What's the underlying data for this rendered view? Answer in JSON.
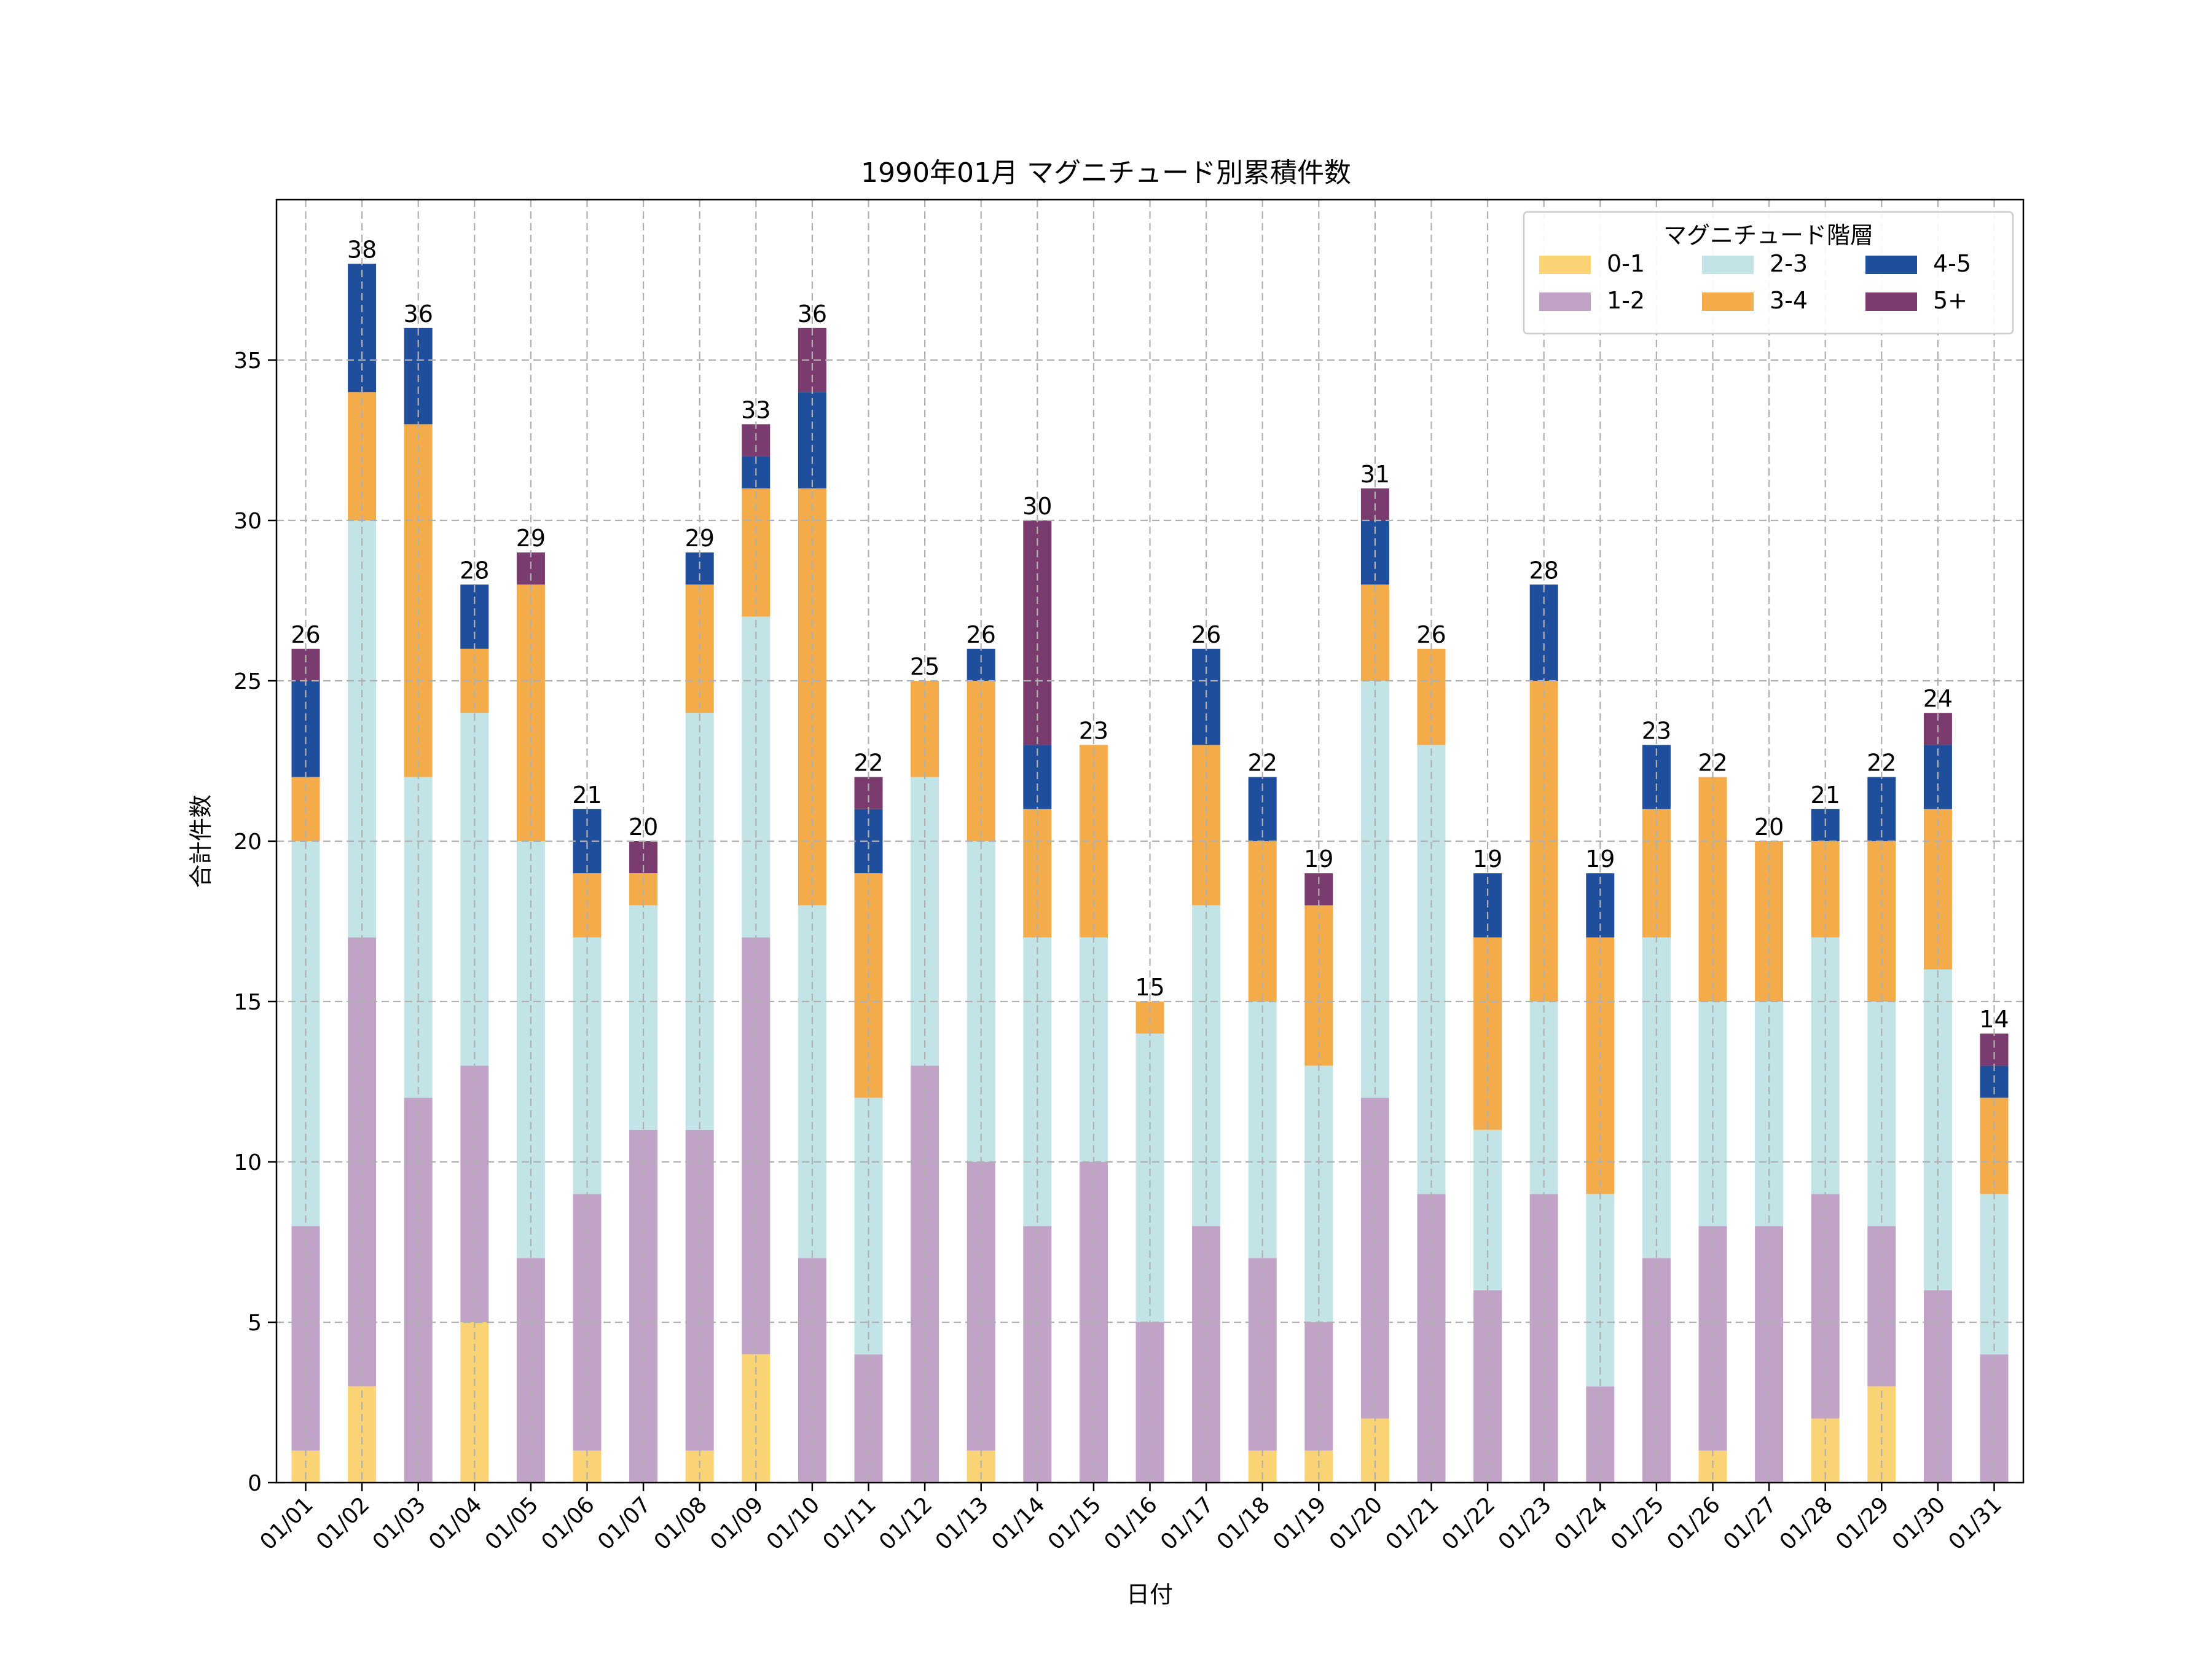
{
  "chart_data": {
    "type": "bar",
    "stacked": true,
    "title": "1990年01月 マグニチュード別累積件数",
    "xlabel": "日付",
    "ylabel": "合計件数",
    "ylim": [
      0,
      40
    ],
    "yticks": [
      0,
      5,
      10,
      15,
      20,
      25,
      30,
      35
    ],
    "grid": true,
    "legend": {
      "title": "マグニチュード階層",
      "position": "top-right",
      "columns": 3
    },
    "categories": [
      "01/01",
      "01/02",
      "01/03",
      "01/04",
      "01/05",
      "01/06",
      "01/07",
      "01/08",
      "01/09",
      "01/10",
      "01/11",
      "01/12",
      "01/13",
      "01/14",
      "01/15",
      "01/16",
      "01/17",
      "01/18",
      "01/19",
      "01/20",
      "01/21",
      "01/22",
      "01/23",
      "01/24",
      "01/25",
      "01/26",
      "01/27",
      "01/28",
      "01/29",
      "01/30",
      "01/31"
    ],
    "series": [
      {
        "name": "0-1",
        "color": "#FAD375",
        "values": [
          1,
          3,
          0,
          5,
          0,
          1,
          0,
          1,
          4,
          0,
          0,
          0,
          1,
          0,
          0,
          0,
          0,
          1,
          1,
          2,
          0,
          0,
          0,
          0,
          0,
          1,
          0,
          2,
          3,
          0,
          0
        ]
      },
      {
        "name": "1-2",
        "color": "#C1A3C8",
        "values": [
          7,
          14,
          12,
          8,
          7,
          8,
          11,
          10,
          13,
          7,
          4,
          13,
          9,
          8,
          10,
          5,
          8,
          6,
          4,
          10,
          9,
          6,
          9,
          3,
          7,
          7,
          8,
          7,
          5,
          6,
          4
        ]
      },
      {
        "name": "2-3",
        "color": "#C2E4E6",
        "values": [
          12,
          13,
          10,
          11,
          13,
          8,
          7,
          13,
          10,
          11,
          8,
          9,
          10,
          9,
          7,
          9,
          10,
          8,
          8,
          13,
          14,
          5,
          6,
          6,
          10,
          7,
          7,
          8,
          7,
          10,
          5
        ]
      },
      {
        "name": "3-4",
        "color": "#F4AC4A",
        "values": [
          2,
          4,
          11,
          2,
          8,
          2,
          1,
          4,
          4,
          13,
          7,
          3,
          5,
          4,
          6,
          1,
          5,
          5,
          5,
          3,
          3,
          6,
          10,
          8,
          4,
          7,
          5,
          3,
          5,
          5,
          3
        ]
      },
      {
        "name": "4-5",
        "color": "#1F4F9C",
        "values": [
          3,
          4,
          3,
          2,
          0,
          2,
          0,
          1,
          1,
          3,
          2,
          0,
          1,
          2,
          0,
          0,
          3,
          2,
          0,
          2,
          0,
          2,
          3,
          2,
          2,
          0,
          0,
          1,
          2,
          2,
          1
        ]
      },
      {
        "name": "5+",
        "color": "#7A3B6E",
        "values": [
          1,
          0,
          0,
          0,
          1,
          0,
          1,
          0,
          1,
          2,
          1,
          0,
          0,
          7,
          0,
          0,
          0,
          0,
          1,
          1,
          0,
          0,
          0,
          0,
          0,
          0,
          0,
          0,
          0,
          1,
          1
        ]
      }
    ],
    "totals": [
      26,
      38,
      36,
      28,
      29,
      21,
      20,
      29,
      33,
      36,
      22,
      25,
      26,
      30,
      23,
      15,
      26,
      22,
      19,
      31,
      26,
      19,
      28,
      19,
      23,
      22,
      20,
      21,
      22,
      24,
      14
    ]
  }
}
